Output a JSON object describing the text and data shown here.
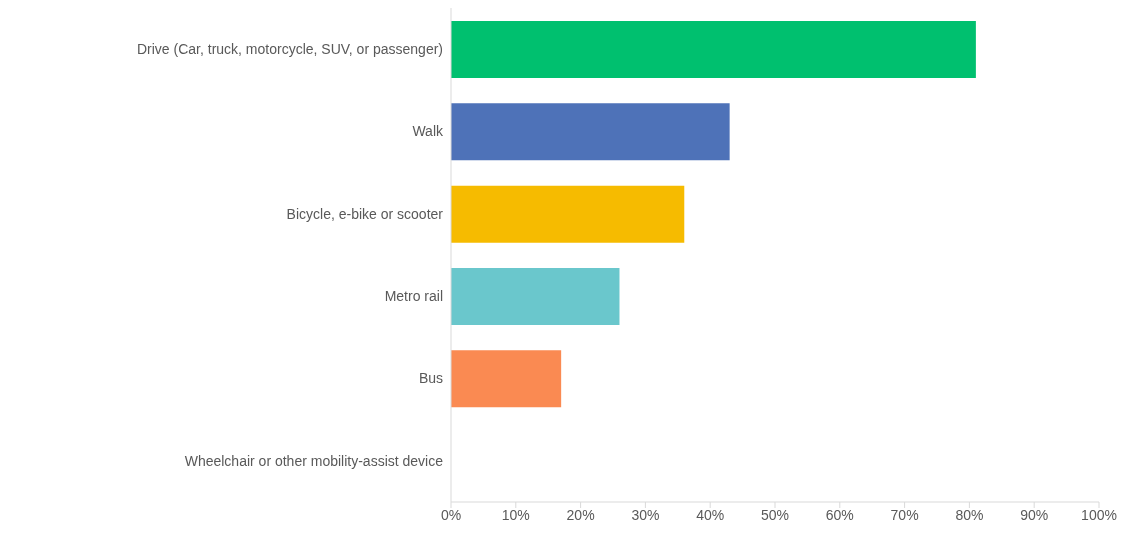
{
  "chart_data": {
    "type": "bar",
    "orientation": "horizontal",
    "categories": [
      "Drive (Car, truck, motorcycle, SUV, or passenger)",
      "Walk",
      "Bicycle, e-bike or scooter",
      "Metro rail",
      "Bus",
      "Wheelchair or other mobility-assist device"
    ],
    "values": [
      81,
      43,
      36,
      26,
      17,
      0
    ],
    "colors": [
      "#00c06f",
      "#4e72b8",
      "#f6bb00",
      "#6ac7cc",
      "#fa8a52",
      "#a5a5a5"
    ],
    "xlim": [
      0,
      100
    ],
    "xticks": [
      {
        "value": 0,
        "label": "0%"
      },
      {
        "value": 10,
        "label": "10%"
      },
      {
        "value": 20,
        "label": "20%"
      },
      {
        "value": 30,
        "label": "30%"
      },
      {
        "value": 40,
        "label": "40%"
      },
      {
        "value": 50,
        "label": "50%"
      },
      {
        "value": 60,
        "label": "60%"
      },
      {
        "value": 70,
        "label": "70%"
      },
      {
        "value": 80,
        "label": "80%"
      },
      {
        "value": 90,
        "label": "90%"
      },
      {
        "value": 100,
        "label": "100%"
      }
    ],
    "grid": false,
    "legend": false
  }
}
